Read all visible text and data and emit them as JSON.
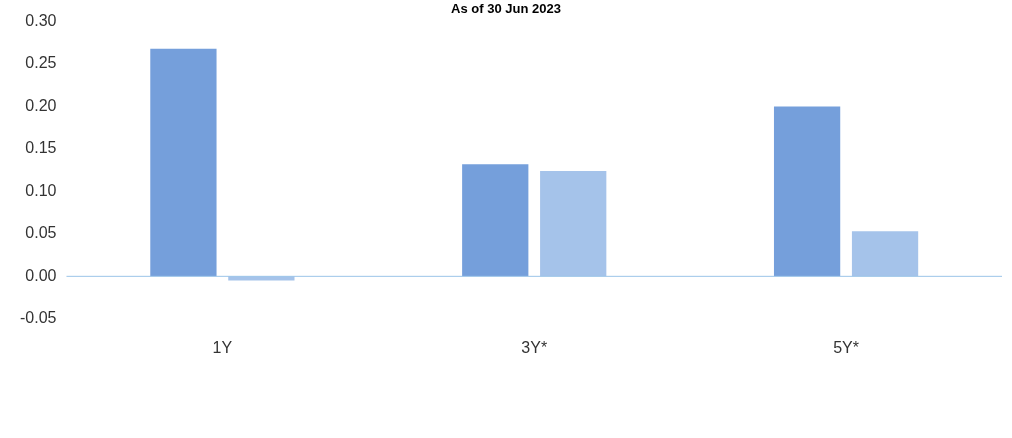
{
  "chart_data": {
    "type": "bar",
    "title": "As of 30 Jun 2023",
    "categories": [
      "1Y",
      "3Y*",
      "5Y*"
    ],
    "series": [
      {
        "color": "#759fdb",
        "values": [
          0.268,
          0.132,
          0.2
        ]
      },
      {
        "color": "#a5c3ea",
        "values": [
          -0.005,
          0.124,
          0.053
        ]
      }
    ],
    "ylim": [
      -0.05,
      0.3
    ],
    "yticks": [
      {
        "value": -0.05,
        "label": "-0.05"
      },
      {
        "value": 0,
        "label": "0.00"
      },
      {
        "value": 0.05,
        "label": "0.05"
      },
      {
        "value": 0.1,
        "label": "0.10"
      },
      {
        "value": 0.15,
        "label": "0.15"
      },
      {
        "value": 0.2,
        "label": "0.20"
      },
      {
        "value": 0.25,
        "label": "0.25"
      },
      {
        "value": 0.3,
        "label": "0.30"
      }
    ],
    "ref_lines": [
      {
        "axis": "y",
        "value": 0,
        "color": "#9cc4e8"
      }
    ],
    "grid": false,
    "legend": false
  }
}
